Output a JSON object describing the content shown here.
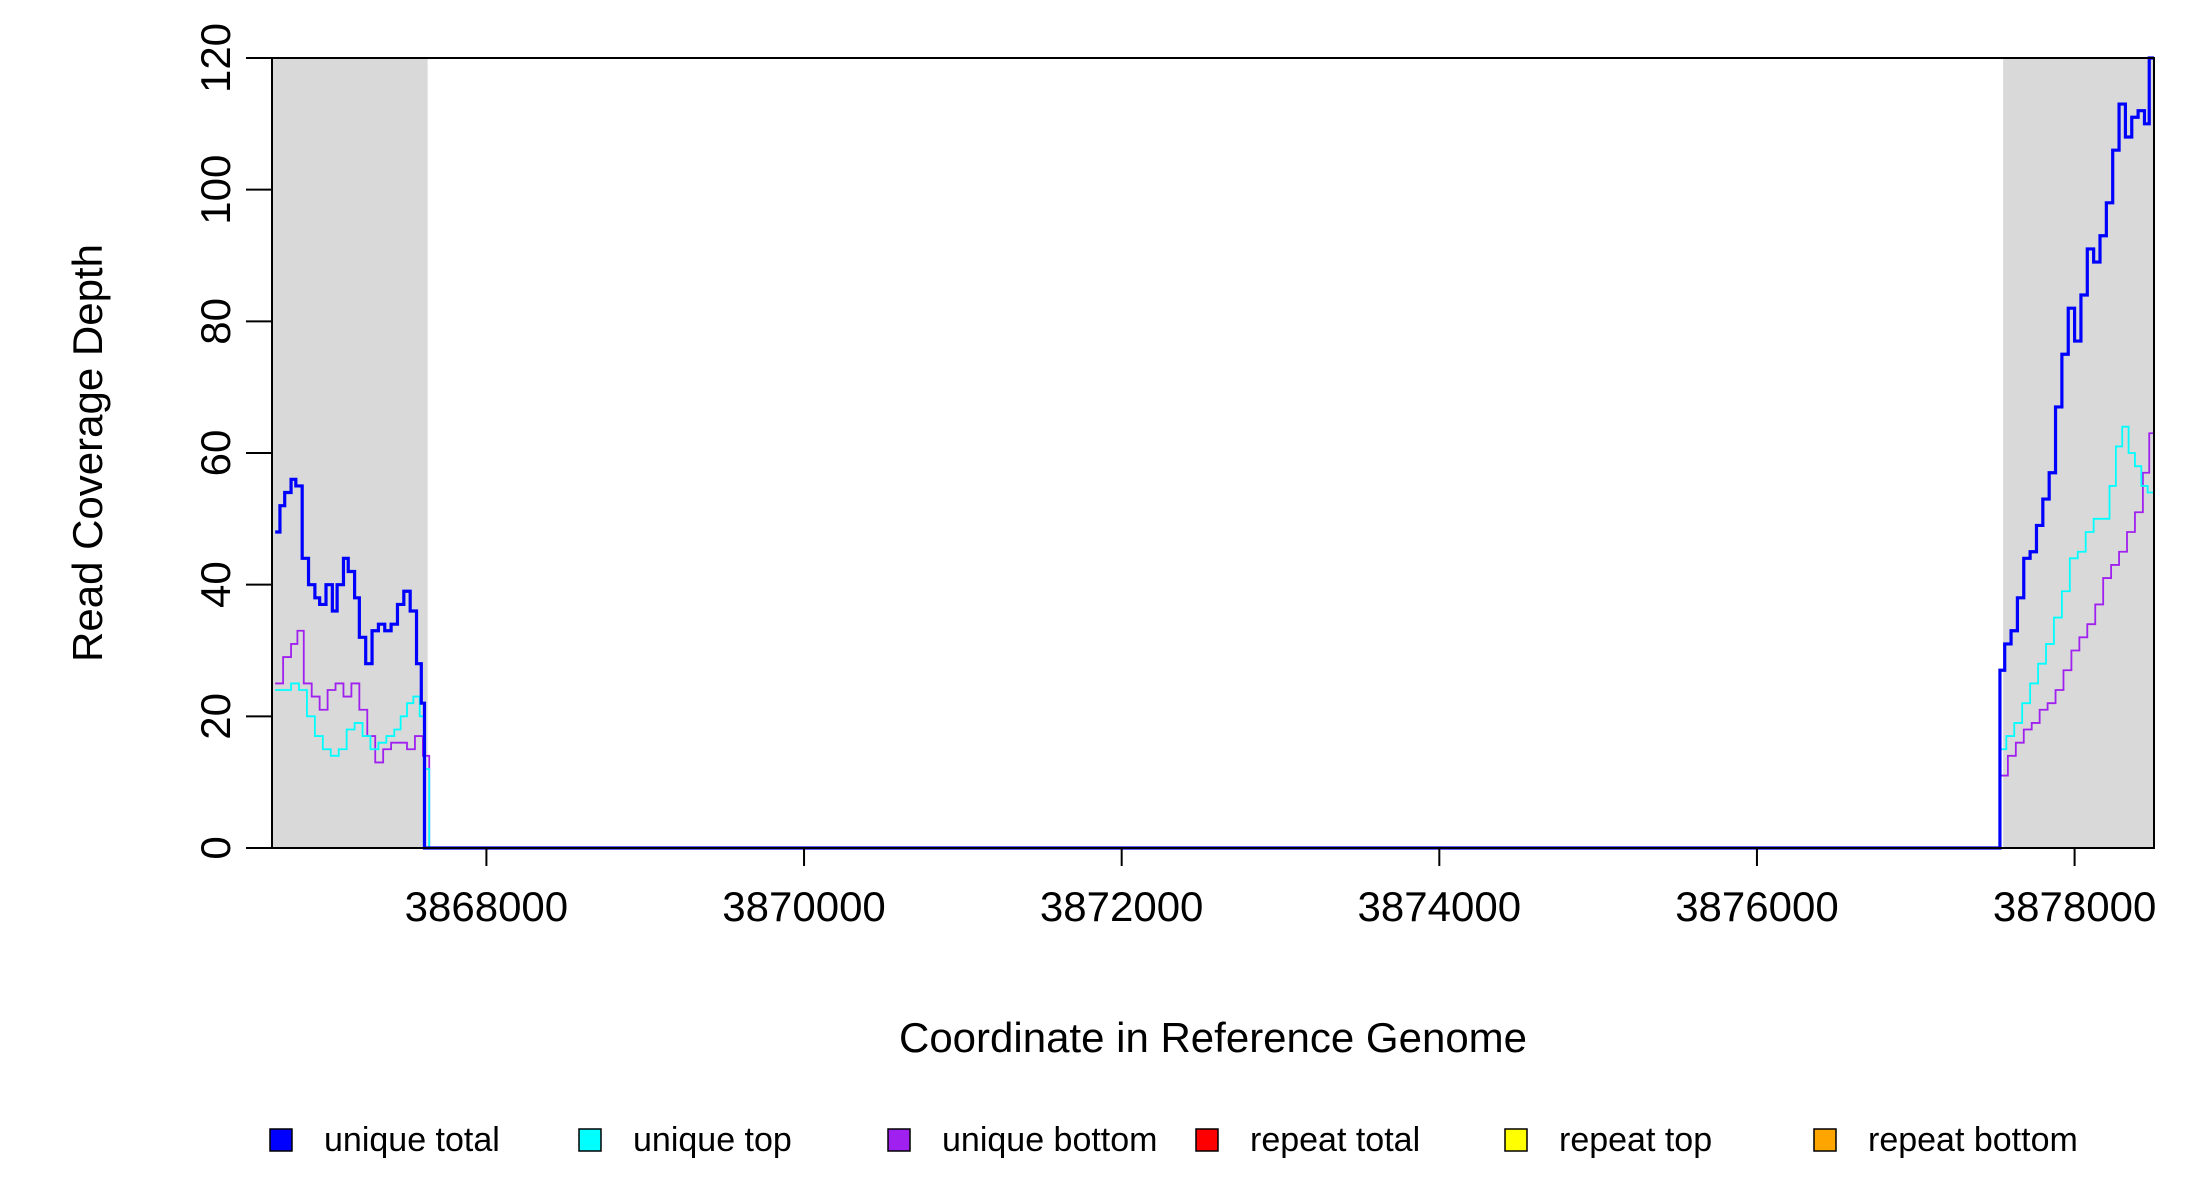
{
  "chart_data": {
    "type": "line",
    "title": "",
    "xlabel": "Coordinate in Reference Genome",
    "ylabel": "Read Coverage Depth",
    "xlim": [
      3866650,
      3878500
    ],
    "ylim": [
      0,
      120
    ],
    "x_ticks": [
      3868000,
      3870000,
      3872000,
      3874000,
      3876000,
      3878000
    ],
    "x_tick_labels": [
      "3868000",
      "3870000",
      "3872000",
      "3874000",
      "3876000",
      "3878000"
    ],
    "y_ticks": [
      0,
      20,
      40,
      60,
      80,
      100,
      120
    ],
    "y_tick_labels": [
      "0",
      "20",
      "40",
      "60",
      "80",
      "100",
      "120"
    ],
    "shaded_regions": [
      {
        "x": [
          3866650,
          3867630
        ],
        "color": "#d9d9d9"
      },
      {
        "x": [
          3877550,
          3878500
        ],
        "color": "#d9d9d9"
      }
    ],
    "legend_position": "bottom",
    "series": [
      {
        "name": "unique total",
        "color": "#0000ff",
        "x": [
          3866670,
          3866700,
          3866730,
          3866770,
          3866800,
          3866840,
          3866880,
          3866920,
          3866950,
          3866990,
          3867030,
          3867060,
          3867100,
          3867130,
          3867170,
          3867200,
          3867240,
          3867280,
          3867320,
          3867360,
          3867400,
          3867440,
          3867480,
          3867520,
          3867560,
          3867590,
          3867610,
          3867630,
          3867650,
          3877100,
          3877150,
          3877400,
          3877450,
          3877530,
          3877560,
          3877600,
          3877640,
          3877680,
          3877720,
          3877760,
          3877800,
          3877840,
          3877880,
          3877920,
          3877960,
          3878000,
          3878040,
          3878080,
          3878120,
          3878160,
          3878200,
          3878240,
          3878280,
          3878320,
          3878360,
          3878400,
          3878440,
          3878470,
          3878500
        ],
        "y": [
          48,
          52,
          54,
          56,
          55,
          44,
          40,
          38,
          37,
          40,
          36,
          40,
          44,
          42,
          38,
          32,
          28,
          33,
          34,
          33,
          34,
          37,
          39,
          36,
          28,
          22,
          0,
          0,
          0,
          0,
          0,
          0,
          0,
          27,
          31,
          33,
          38,
          44,
          45,
          49,
          53,
          57,
          67,
          75,
          82,
          77,
          84,
          91,
          89,
          93,
          98,
          106,
          113,
          108,
          111,
          112,
          110,
          120,
          120
        ]
      },
      {
        "name": "unique top",
        "color": "#00ffff",
        "x": [
          3866670,
          3866720,
          3866770,
          3866820,
          3866870,
          3866920,
          3866970,
          3867020,
          3867070,
          3867120,
          3867170,
          3867220,
          3867270,
          3867320,
          3867370,
          3867420,
          3867460,
          3867500,
          3867540,
          3867580,
          3867610,
          3867640,
          3877530,
          3877570,
          3877620,
          3877670,
          3877720,
          3877770,
          3877820,
          3877870,
          3877920,
          3877970,
          3878020,
          3878070,
          3878120,
          3878170,
          3878220,
          3878260,
          3878300,
          3878340,
          3878380,
          3878420,
          3878460,
          3878500
        ],
        "y": [
          24,
          24,
          25,
          24,
          20,
          17,
          15,
          14,
          15,
          18,
          19,
          17,
          15,
          16,
          17,
          18,
          20,
          22,
          23,
          20,
          12,
          0,
          15,
          17,
          19,
          22,
          25,
          28,
          31,
          35,
          39,
          44,
          45,
          48,
          50,
          50,
          55,
          61,
          64,
          60,
          58,
          55,
          54,
          54
        ]
      },
      {
        "name": "unique bottom",
        "color": "#a020f0",
        "x": [
          3866670,
          3866720,
          3866770,
          3866810,
          3866850,
          3866900,
          3866950,
          3867000,
          3867050,
          3867100,
          3867150,
          3867200,
          3867250,
          3867300,
          3867350,
          3867400,
          3867450,
          3867500,
          3867550,
          3867600,
          3867640,
          3877530,
          3877580,
          3877630,
          3877680,
          3877730,
          3877780,
          3877830,
          3877880,
          3877930,
          3877980,
          3878030,
          3878080,
          3878130,
          3878180,
          3878230,
          3878280,
          3878330,
          3878380,
          3878430,
          3878470,
          3878500
        ],
        "y": [
          25,
          29,
          31,
          33,
          25,
          23,
          21,
          24,
          25,
          23,
          25,
          21,
          17,
          13,
          15,
          16,
          16,
          15,
          17,
          14,
          0,
          11,
          14,
          16,
          18,
          19,
          21,
          22,
          24,
          27,
          30,
          32,
          34,
          37,
          41,
          43,
          45,
          48,
          51,
          57,
          63,
          63
        ]
      },
      {
        "name": "repeat total",
        "color": "#ff0000",
        "x": [
          3866650,
          3878500
        ],
        "y": [
          0,
          0
        ]
      },
      {
        "name": "repeat top",
        "color": "#ffff00",
        "x": [
          3866650,
          3878500
        ],
        "y": [
          0,
          0
        ]
      },
      {
        "name": "repeat bottom",
        "color": "#ffa500",
        "x": [
          3866650,
          3878500
        ],
        "y": [
          0,
          0
        ]
      }
    ]
  }
}
